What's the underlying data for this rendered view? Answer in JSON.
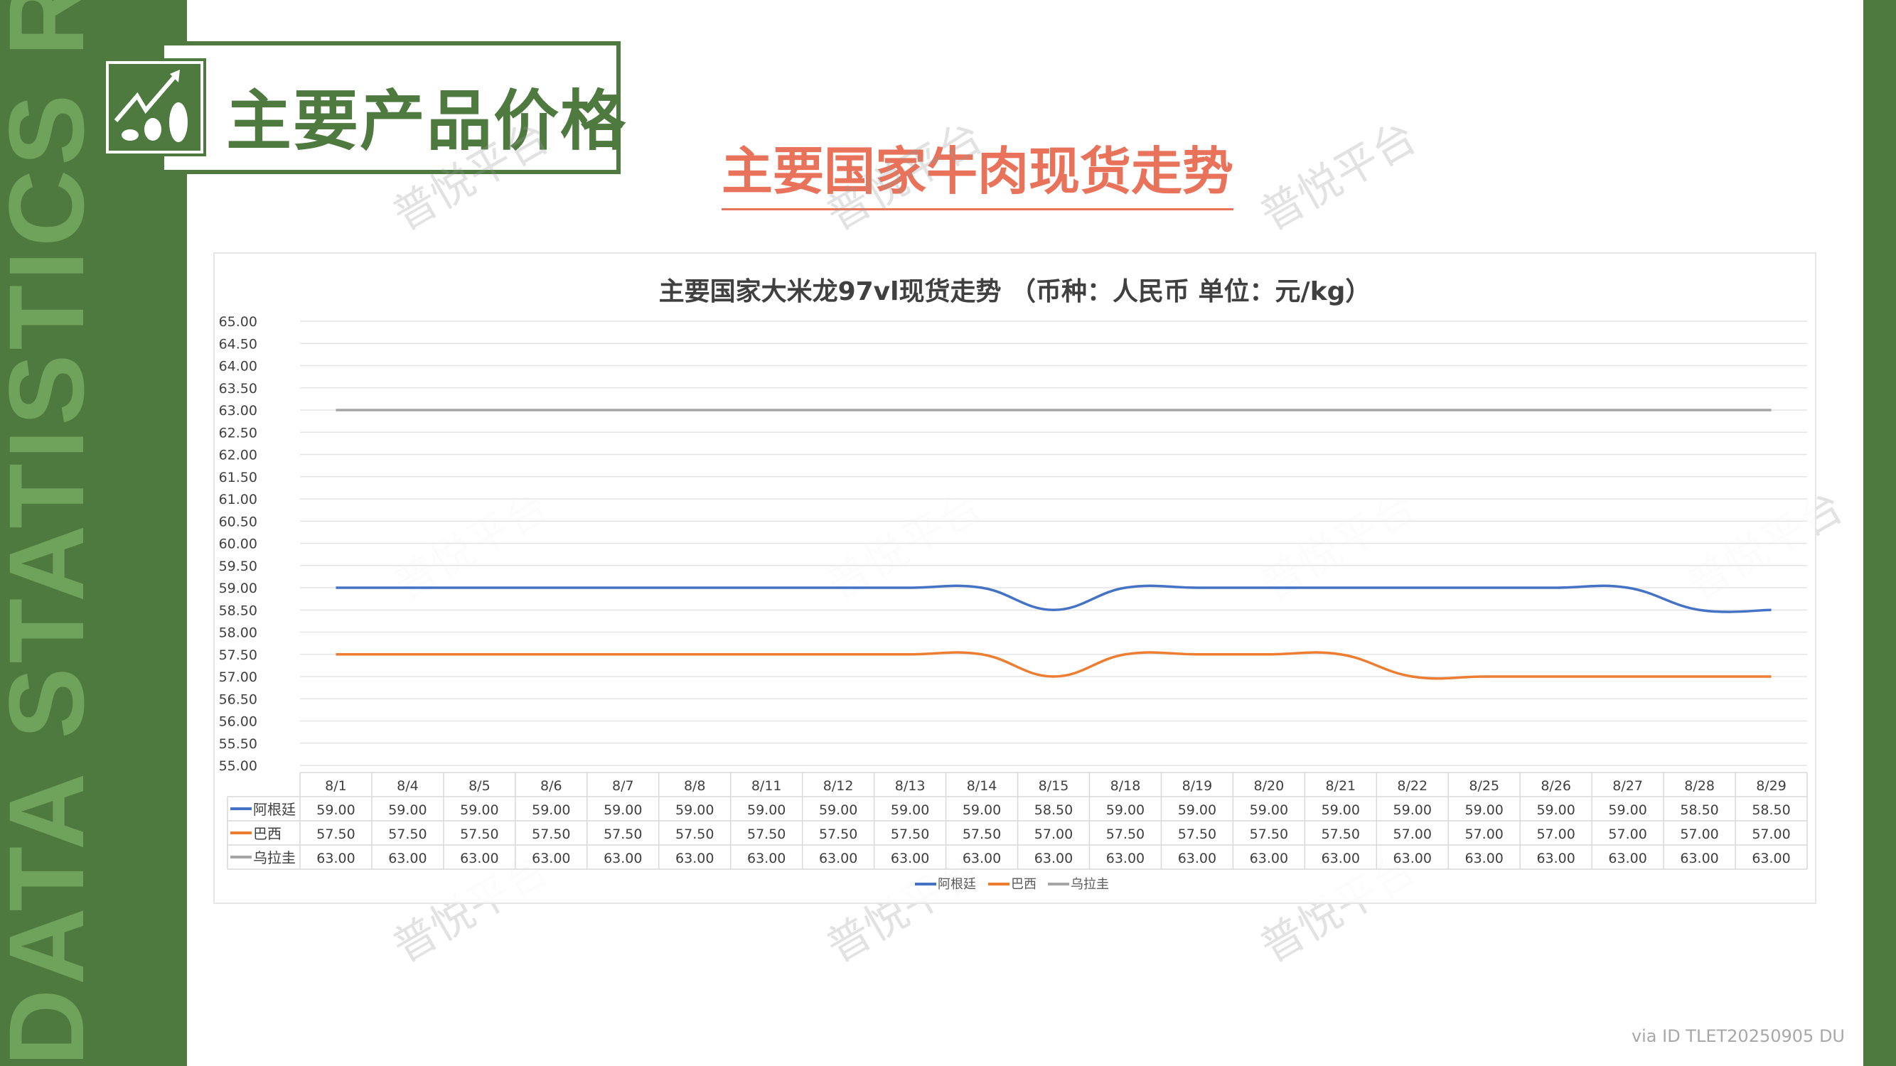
{
  "slide": {
    "side_text": "DATA STATISTICS REPORT",
    "header_title": "主要产品价格",
    "header_icon": "chart-up-coins-icon",
    "title": "主要国家牛肉现货走势",
    "footer": "via ID TLET20250905 DU",
    "watermark": "普悦平台",
    "colors": {
      "green": "#4e7a3f",
      "title_red": "#e8735a"
    }
  },
  "chart_data": {
    "type": "line",
    "title": "主要国家大米龙97vl现货走势 （币种：人民币 单位：元/kg）",
    "categories": [
      "8/1",
      "8/4",
      "8/5",
      "8/6",
      "8/7",
      "8/8",
      "8/11",
      "8/12",
      "8/13",
      "8/14",
      "8/15",
      "8/18",
      "8/19",
      "8/20",
      "8/21",
      "8/22",
      "8/25",
      "8/26",
      "8/27",
      "8/28",
      "8/29"
    ],
    "ylim": [
      55,
      65
    ],
    "yticks": [
      "55.00",
      "55.50",
      "56.00",
      "56.50",
      "57.00",
      "57.50",
      "58.00",
      "58.50",
      "59.00",
      "59.50",
      "60.00",
      "60.50",
      "61.00",
      "61.50",
      "62.00",
      "62.50",
      "63.00",
      "63.50",
      "64.00",
      "64.50",
      "65.00"
    ],
    "grid": true,
    "legend": "bottom",
    "data_table": true,
    "smooth": true,
    "series": [
      {
        "name": "阿根廷",
        "color": "#4472c4",
        "values": [
          59,
          59,
          59,
          59,
          59,
          59,
          59,
          59,
          59,
          59,
          58.5,
          59,
          59,
          59,
          59,
          59,
          59,
          59,
          59,
          58.5,
          58.5
        ]
      },
      {
        "name": "巴西",
        "color": "#ed7d31",
        "values": [
          57.5,
          57.5,
          57.5,
          57.5,
          57.5,
          57.5,
          57.5,
          57.5,
          57.5,
          57.5,
          57,
          57.5,
          57.5,
          57.5,
          57.5,
          57,
          57,
          57,
          57,
          57,
          57
        ]
      },
      {
        "name": "乌拉圭",
        "color": "#a5a5a5",
        "values": [
          63,
          63,
          63,
          63,
          63,
          63,
          63,
          63,
          63,
          63,
          63,
          63,
          63,
          63,
          63,
          63,
          63,
          63,
          63,
          63,
          63
        ]
      }
    ]
  }
}
